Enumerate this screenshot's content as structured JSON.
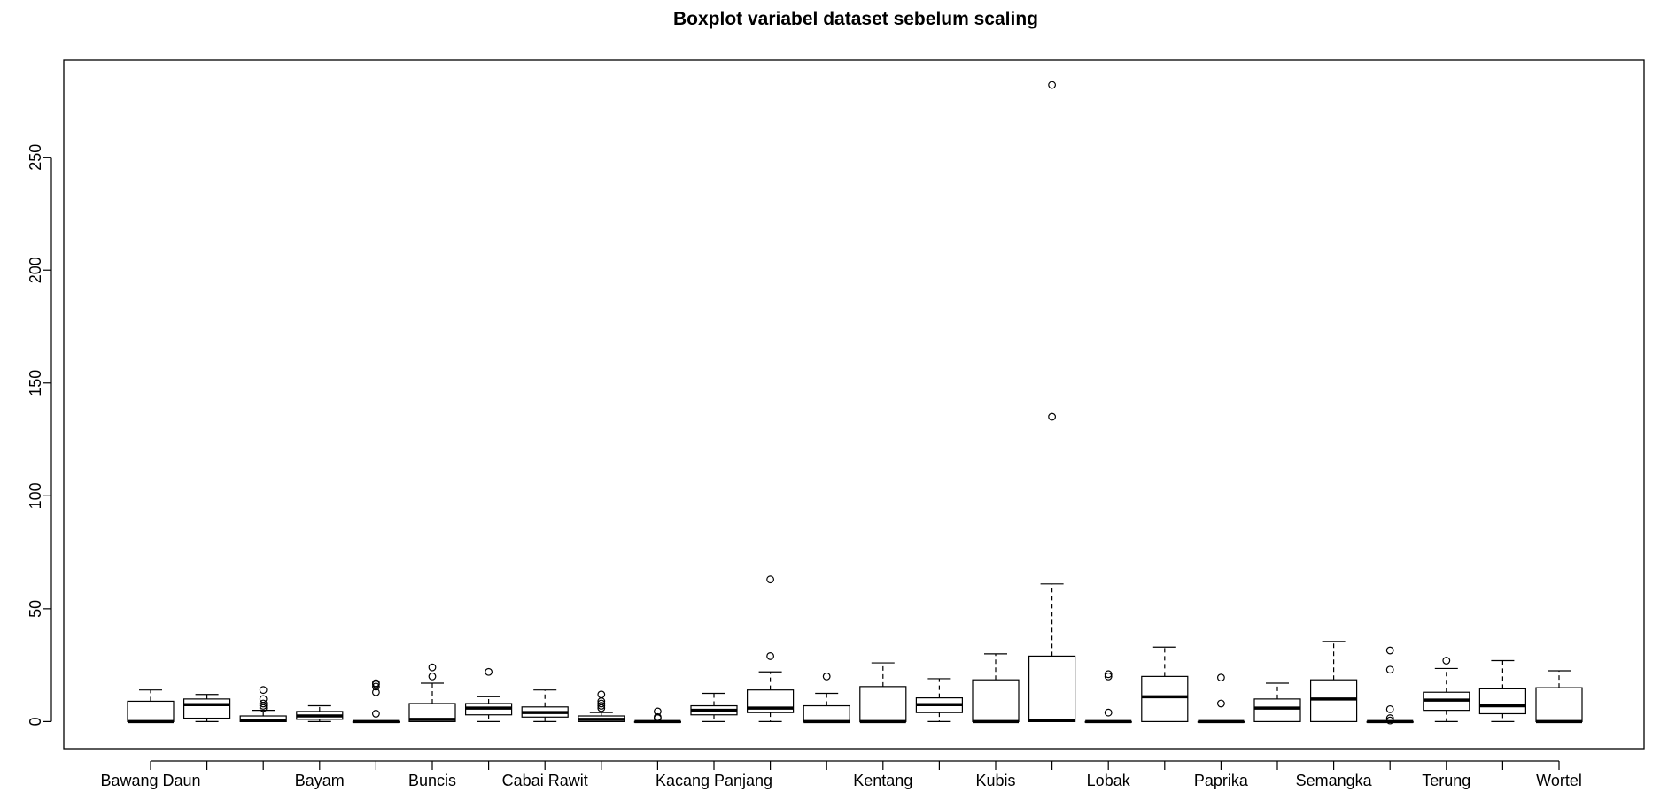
{
  "chart_data": {
    "type": "boxplot",
    "title": "Boxplot variabel dataset sebelum scaling",
    "xlabel": "",
    "ylabel": "",
    "ylim": [
      -12,
      293
    ],
    "y_ticks": [
      0,
      50,
      100,
      150,
      200,
      250
    ],
    "x_tick_labels": [
      {
        "index": 1,
        "label": "Bawang Daun"
      },
      {
        "index": 4,
        "label": "Bayam"
      },
      {
        "index": 6,
        "label": "Buncis"
      },
      {
        "index": 8,
        "label": "Cabai Rawit"
      },
      {
        "index": 11,
        "label": "Kacang Panjang"
      },
      {
        "index": 14,
        "label": "Kentang"
      },
      {
        "index": 16,
        "label": "Kubis"
      },
      {
        "index": 18,
        "label": "Lobak"
      },
      {
        "index": 20,
        "label": "Paprika"
      },
      {
        "index": 22,
        "label": "Semangka"
      },
      {
        "index": 24,
        "label": "Terung"
      },
      {
        "index": 26,
        "label": "Wortel"
      }
    ],
    "boxes": [
      {
        "min": 0,
        "q1": 0,
        "median": 0,
        "q3": 9,
        "max": 14,
        "outliers": []
      },
      {
        "min": 0,
        "q1": 1.5,
        "median": 7.5,
        "q3": 10,
        "max": 12,
        "outliers": []
      },
      {
        "min": 0,
        "q1": 0,
        "median": 0.5,
        "q3": 2.5,
        "max": 5,
        "outliers": [
          6,
          7,
          8,
          10,
          14
        ]
      },
      {
        "min": 0,
        "q1": 1,
        "median": 2.5,
        "q3": 4.5,
        "max": 7,
        "outliers": []
      },
      {
        "min": 0,
        "q1": 0,
        "median": 0,
        "q3": 0,
        "max": 0,
        "outliers": [
          3.5,
          13,
          15.5,
          16.5,
          17
        ]
      },
      {
        "min": 0,
        "q1": 0,
        "median": 1,
        "q3": 8,
        "max": 17,
        "outliers": [
          20,
          24
        ]
      },
      {
        "min": 0,
        "q1": 3,
        "median": 6,
        "q3": 8,
        "max": 11,
        "outliers": [
          22
        ]
      },
      {
        "min": 0,
        "q1": 2,
        "median": 4,
        "q3": 6.5,
        "max": 14,
        "outliers": []
      },
      {
        "min": 0,
        "q1": 0,
        "median": 1,
        "q3": 2.5,
        "max": 4,
        "outliers": [
          6,
          7,
          8,
          9,
          12
        ]
      },
      {
        "min": 0,
        "q1": 0,
        "median": 0,
        "q3": 0,
        "max": 0,
        "outliers": [
          1.5,
          2,
          4.5
        ]
      },
      {
        "min": 0,
        "q1": 3,
        "median": 5,
        "q3": 7,
        "max": 12.5,
        "outliers": []
      },
      {
        "min": 0,
        "q1": 4,
        "median": 6,
        "q3": 14,
        "max": 22,
        "outliers": [
          29,
          63
        ]
      },
      {
        "min": 0,
        "q1": 0,
        "median": 0,
        "q3": 7,
        "max": 12.5,
        "outliers": [
          20
        ]
      },
      {
        "min": 0,
        "q1": 0,
        "median": 0,
        "q3": 15.5,
        "max": 26,
        "outliers": []
      },
      {
        "min": 0,
        "q1": 4,
        "median": 7.5,
        "q3": 10.5,
        "max": 19,
        "outliers": []
      },
      {
        "min": 0,
        "q1": 0,
        "median": 0,
        "q3": 18.5,
        "max": 30,
        "outliers": []
      },
      {
        "min": 0,
        "q1": 0,
        "median": 0.5,
        "q3": 29,
        "max": 61,
        "outliers": [
          135,
          282
        ]
      },
      {
        "min": 0,
        "q1": 0,
        "median": 0,
        "q3": 0,
        "max": 0,
        "outliers": [
          4,
          20,
          21
        ]
      },
      {
        "min": 0,
        "q1": 0,
        "median": 11,
        "q3": 20,
        "max": 33,
        "outliers": []
      },
      {
        "min": 0,
        "q1": 0,
        "median": 0,
        "q3": 0,
        "max": 0,
        "outliers": [
          8,
          19.5
        ]
      },
      {
        "min": 0,
        "q1": 0,
        "median": 6,
        "q3": 10,
        "max": 17,
        "outliers": []
      },
      {
        "min": 0,
        "q1": 0,
        "median": 10,
        "q3": 18.5,
        "max": 35.5,
        "outliers": []
      },
      {
        "min": 0,
        "q1": 0,
        "median": 0,
        "q3": 0,
        "max": 0,
        "outliers": [
          0.5,
          1.5,
          5.5,
          23,
          31.5
        ]
      },
      {
        "min": 0,
        "q1": 5,
        "median": 9.5,
        "q3": 13,
        "max": 23.5,
        "outliers": [
          27
        ]
      },
      {
        "min": 0,
        "q1": 3.5,
        "median": 7,
        "q3": 14.5,
        "max": 27,
        "outliers": []
      },
      {
        "min": 0,
        "q1": 0,
        "median": 0,
        "q3": 15,
        "max": 22.5,
        "outliers": []
      }
    ],
    "grid": false,
    "legend": "none"
  }
}
